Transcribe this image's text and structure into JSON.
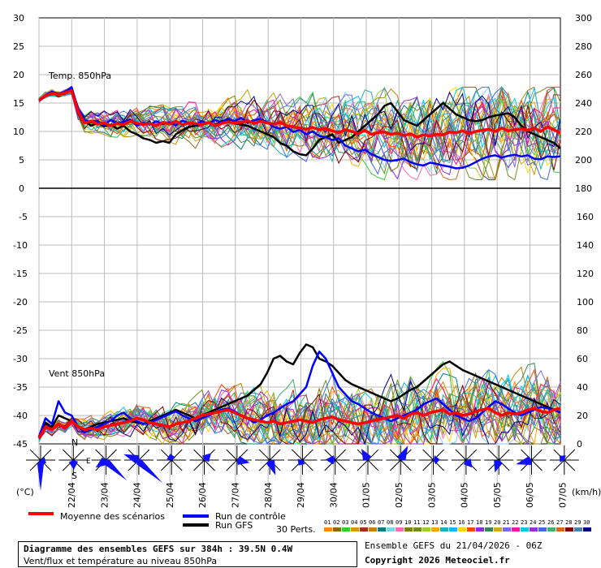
{
  "chart_data": [
    {
      "type": "line",
      "panel": "top",
      "panel_label": "Temp. 850hPa",
      "y_left_ticks": [
        "30",
        "25",
        "20",
        "15",
        "10",
        "5",
        "0"
      ],
      "y_right_ticks": [
        "300",
        "280",
        "260",
        "240",
        "220",
        "200",
        "180"
      ],
      "ylim": [
        0,
        30
      ],
      "grid": true,
      "mean_series": {
        "name": "Moyenne des scénarios",
        "color": "#ff0000",
        "values": [
          15.5,
          16.3,
          16.7,
          16.5,
          16.8,
          17.2,
          13.5,
          11.5,
          11.8,
          11.3,
          11.5,
          11.0,
          11.4,
          11.2,
          11.8,
          11.5,
          11.2,
          11.4,
          11.0,
          11.6,
          11.3,
          11.8,
          11.2,
          11.5,
          11.4,
          11.2,
          11.6,
          11.0,
          11.4,
          11.7,
          11.5,
          11.6,
          11.9,
          11.4,
          11.8,
          11.5,
          11.3,
          11.6,
          11.0,
          10.8,
          10.6,
          10.4,
          10.7,
          10.3,
          10.5,
          10.1,
          9.8,
          10.3,
          10.0,
          9.6,
          10.2,
          9.5,
          9.8,
          9.9,
          9.5,
          9.7,
          9.3,
          9.6,
          9.0,
          9.4,
          9.2,
          9.5,
          9.4,
          9.9,
          9.8,
          10.1,
          9.6,
          10.0,
          10.2,
          10.4,
          10.0,
          10.6,
          10.1,
          10.3,
          10.5,
          10.2,
          10.6,
          10.0,
          10.8,
          10.3,
          9.7
        ]
      },
      "control_series": {
        "name": "Run de contrôle",
        "color": "#0000ff",
        "values": [
          15.5,
          16.4,
          17.0,
          16.6,
          17.0,
          17.8,
          14.0,
          12.0,
          11.6,
          11.8,
          11.1,
          12.0,
          11.3,
          11.7,
          12.1,
          11.0,
          11.5,
          11.2,
          11.8,
          11.3,
          11.6,
          11.1,
          11.9,
          11.5,
          11.2,
          11.8,
          11.4,
          12.0,
          11.6,
          12.3,
          11.8,
          12.4,
          11.5,
          12.0,
          12.2,
          11.6,
          10.8,
          10.5,
          10.8,
          9.9,
          10.3,
          9.5,
          10.0,
          9.2,
          9.0,
          8.5,
          8.8,
          7.5,
          7.0,
          6.5,
          6.8,
          6.0,
          5.5,
          5.0,
          4.8,
          5.0,
          5.2,
          4.6,
          4.2,
          4.0,
          4.5,
          4.3,
          4.0,
          3.8,
          3.5,
          3.6,
          4.0,
          4.6,
          5.2,
          5.6,
          5.8,
          5.4,
          5.7,
          5.9,
          5.6,
          5.8,
          5.2,
          5.1,
          5.6,
          5.5,
          5.6
        ]
      },
      "gfs_series": {
        "name": "Run GFS",
        "color": "#000000",
        "values": [
          15.5,
          16.2,
          16.9,
          16.4,
          17.0,
          17.5,
          13.2,
          11.8,
          11.0,
          11.5,
          10.9,
          11.2,
          10.5,
          11.0,
          10.0,
          9.5,
          8.8,
          8.5,
          8.0,
          8.3,
          8.0,
          9.5,
          10.2,
          10.8,
          11.0,
          11.2,
          11.5,
          11.1,
          11.8,
          12.0,
          11.4,
          11.2,
          11.0,
          10.5,
          10.0,
          9.5,
          9.0,
          8.0,
          7.5,
          6.5,
          6.0,
          5.8,
          7.0,
          8.5,
          9.0,
          9.5,
          8.0,
          8.5,
          9.0,
          10.0,
          11.0,
          12.0,
          13.0,
          14.5,
          15.0,
          13.5,
          12.0,
          11.5,
          11.0,
          12.0,
          13.0,
          14.0,
          15.0,
          14.0,
          13.0,
          12.5,
          12.0,
          11.8,
          12.0,
          12.5,
          12.8,
          13.0,
          13.2,
          12.5,
          11.0,
          10.0,
          9.5,
          9.0,
          8.5,
          8.0,
          7.0
        ]
      },
      "spread": {
        "start": 15.5,
        "end_low": 1.5,
        "end_high": 17.5
      }
    },
    {
      "type": "line",
      "panel": "bottom",
      "panel_label": "Vent 850hPa",
      "y_left_ticks": [
        "0",
        "-5",
        "-10",
        "-15",
        "-20",
        "-25",
        "-30",
        "-35",
        "-40",
        "-45"
      ],
      "y_right_ticks": [
        "180",
        "160",
        "140",
        "120",
        "100",
        "80",
        "60",
        "40",
        "20",
        "0"
      ],
      "ylim_kmh": [
        0,
        180
      ],
      "grid": true,
      "mean_series": {
        "name": "Moyenne des scénarios",
        "color": "#ff0000",
        "values": [
          4,
          12,
          10,
          14,
          11,
          16,
          12,
          10,
          11,
          10,
          12,
          13,
          14,
          15,
          16,
          18,
          17,
          15,
          14,
          13,
          12,
          14,
          15,
          16,
          18,
          20,
          21,
          22,
          23,
          24,
          22,
          20,
          18,
          17,
          16,
          15,
          16,
          14,
          15,
          16,
          17,
          16,
          15,
          17,
          18,
          19,
          17,
          16,
          15,
          14,
          15,
          16,
          17,
          18,
          19,
          20,
          18,
          21,
          22,
          20,
          22,
          23,
          24,
          21,
          22,
          20,
          21,
          23,
          24,
          25,
          22,
          20,
          22,
          21,
          22,
          24,
          25,
          23,
          22,
          24,
          25
        ]
      },
      "control_series": {
        "name": "Run de contrôle",
        "color": "#0000ff",
        "values": [
          5,
          18,
          14,
          30,
          22,
          20,
          12,
          8,
          10,
          12,
          14,
          16,
          20,
          22,
          18,
          16,
          14,
          15,
          17,
          19,
          21,
          23,
          20,
          18,
          16,
          18,
          20,
          22,
          24,
          25,
          23,
          20,
          18,
          15,
          17,
          20,
          22,
          25,
          28,
          30,
          35,
          40,
          55,
          65,
          60,
          50,
          40,
          35,
          30,
          28,
          25,
          22,
          20,
          18,
          16,
          18,
          20,
          22,
          24,
          28,
          30,
          32,
          28,
          24,
          20,
          18,
          16,
          18,
          22,
          26,
          30,
          28,
          25,
          22,
          20,
          22,
          24,
          26,
          25,
          24,
          22
        ]
      },
      "gfs_series": {
        "name": "Run GFS",
        "color": "#000000",
        "values": [
          5,
          15,
          12,
          20,
          18,
          16,
          12,
          10,
          12,
          14,
          15,
          16,
          17,
          18,
          16,
          15,
          14,
          16,
          18,
          20,
          22,
          24,
          22,
          20,
          18,
          20,
          22,
          24,
          26,
          28,
          30,
          32,
          34,
          38,
          42,
          50,
          60,
          62,
          58,
          56,
          64,
          70,
          68,
          60,
          58,
          55,
          50,
          45,
          42,
          40,
          38,
          36,
          34,
          32,
          30,
          32,
          35,
          38,
          40,
          44,
          48,
          52,
          56,
          58,
          55,
          52,
          50,
          48,
          46,
          44,
          42,
          40,
          38,
          36,
          34,
          32,
          30,
          28,
          26,
          24,
          22
        ]
      }
    }
  ],
  "x_axis": {
    "date_labels": [
      "22/04",
      "23/04",
      "24/04",
      "25/04",
      "26/04",
      "27/04",
      "28/04",
      "29/04",
      "30/04",
      "01/05",
      "02/05",
      "03/05",
      "04/05",
      "05/05",
      "06/05",
      "07/05"
    ]
  },
  "wind_rose": {
    "north": "N",
    "south": "S",
    "east": "E"
  },
  "units": {
    "left": "(°C)",
    "right": "(km/h)"
  },
  "legend": {
    "mean": "Moyenne des scénarios",
    "control": "Run de contrôle",
    "gfs": "Run GFS",
    "perts_label": "30 Perts.",
    "perts_numbers": [
      "01",
      "02",
      "03",
      "04",
      "05",
      "06",
      "07",
      "08",
      "09",
      "10",
      "11",
      "12",
      "13",
      "14",
      "15",
      "16",
      "17",
      "18",
      "19",
      "20",
      "21",
      "22",
      "23",
      "24",
      "25",
      "26",
      "27",
      "28",
      "29",
      "30"
    ],
    "perts_colors": [
      "#ff8c00",
      "#8b6914",
      "#32cd32",
      "#c8a000",
      "#a52a2a",
      "#b8860b",
      "#008080",
      "#87ceeb",
      "#ff69b4",
      "#808000",
      "#6b8e23",
      "#9acd32",
      "#ffa500",
      "#20b2aa",
      "#00bfff",
      "#ffd700",
      "#ff4500",
      "#8a2be2",
      "#2e8b57",
      "#daa520",
      "#7b68ee",
      "#ff1493",
      "#00ced1",
      "#9932cc",
      "#4169e1",
      "#3cb371",
      "#d2691e",
      "#800000",
      "#4682b4",
      "#000080"
    ]
  },
  "footer": {
    "title": "Diagramme des ensembles GEFS sur 384h : 39.5N 0.4W",
    "subtitle": "Vent/flux et température au niveau 850hPa",
    "run": "Ensemble GEFS du 21/04/2026 - 06Z",
    "copyright": "Copyright 2026 Meteociel.fr"
  }
}
